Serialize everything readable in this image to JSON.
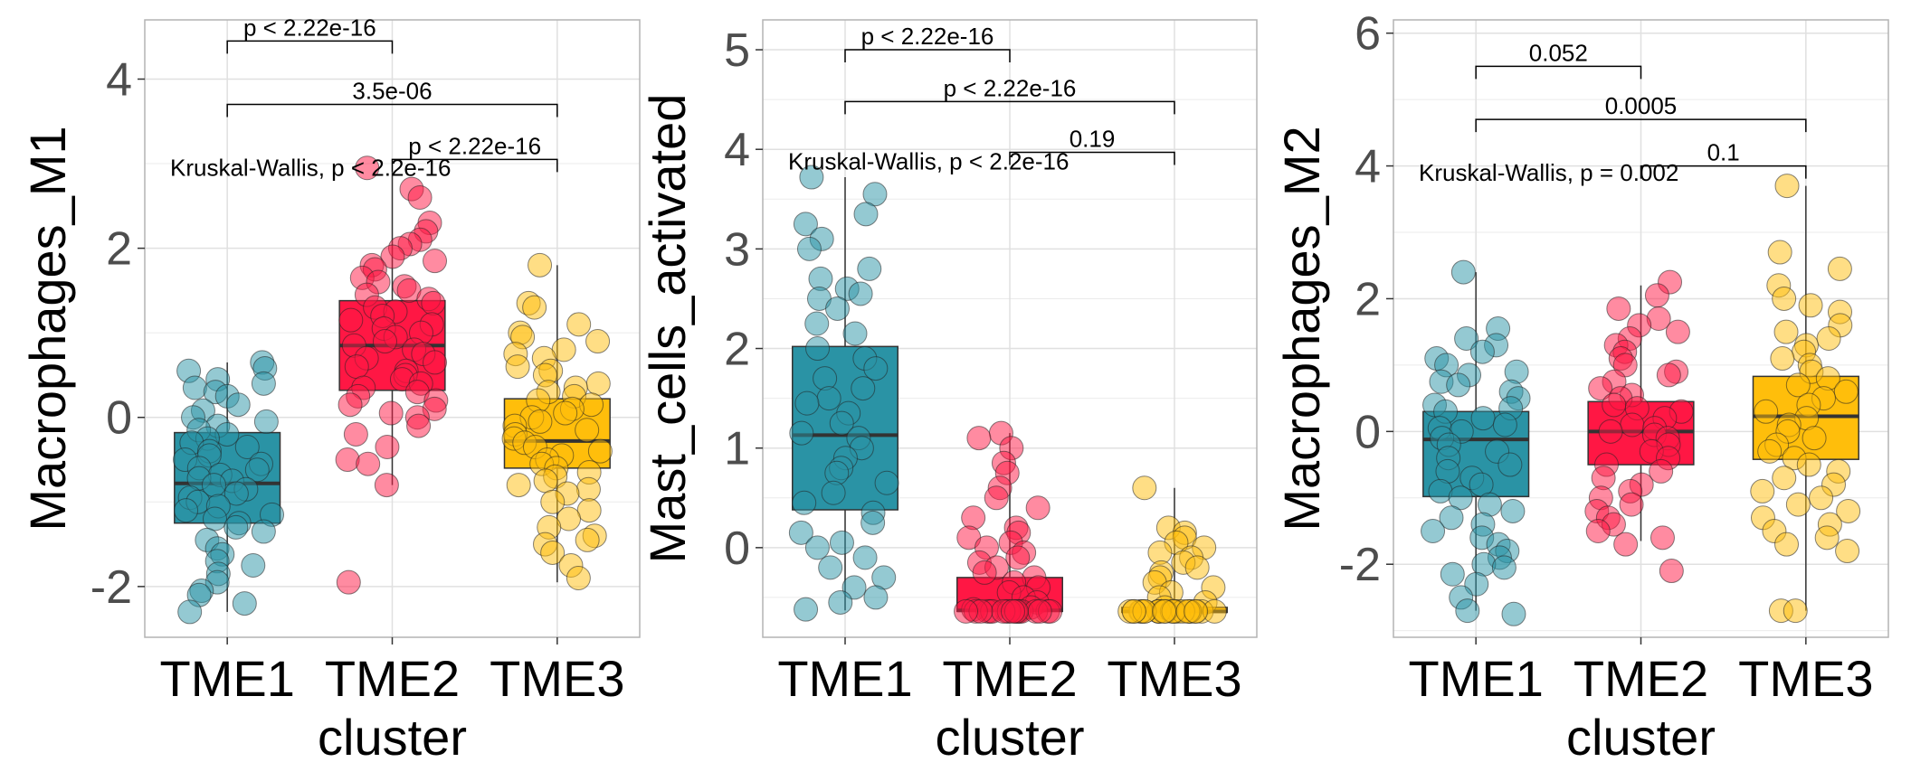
{
  "colors": {
    "TME1": "#2A93A5",
    "TME2": "#FF1744",
    "TME3": "#FFBE0B"
  },
  "chart_data": [
    {
      "type": "box",
      "title": "",
      "xlabel": "cluster",
      "ylabel": "Macrophages_M1",
      "categories": [
        "TME1",
        "TME2",
        "TME3"
      ],
      "ylim": [
        -2.6,
        4.7
      ],
      "yticks": [
        -2,
        0,
        2,
        4
      ],
      "grid": true,
      "boxes": [
        {
          "category": "TME1",
          "q1": -1.25,
          "median": -0.78,
          "q3": -0.18,
          "whisker_low": -2.3,
          "whisker_high": 0.65
        },
        {
          "category": "TME2",
          "q1": 0.32,
          "median": 0.85,
          "q3": 1.38,
          "whisker_low": -0.8,
          "whisker_high": 2.9
        },
        {
          "category": "TME3",
          "q1": -0.6,
          "median": -0.28,
          "q3": 0.22,
          "whisker_low": -1.95,
          "whisker_high": 1.8
        }
      ],
      "points": {
        "TME1": [
          0.65,
          0.58,
          0.55,
          0.45,
          0.4,
          0.35,
          0.3,
          0.25,
          0.15,
          0.08,
          0.0,
          -0.05,
          -0.1,
          -0.15,
          -0.2,
          -0.25,
          -0.3,
          -0.35,
          -0.4,
          -0.45,
          -0.5,
          -0.55,
          -0.6,
          -0.62,
          -0.68,
          -0.72,
          -0.75,
          -0.8,
          -0.85,
          -0.9,
          -0.95,
          -1.0,
          -1.05,
          -1.1,
          -1.15,
          -1.2,
          -1.25,
          -1.3,
          -1.35,
          -1.45,
          -1.55,
          -1.62,
          -1.7,
          -1.75,
          -1.85,
          -1.95,
          -2.05,
          -2.1,
          -2.2,
          -2.3
        ],
        "TME2": [
          2.95,
          2.7,
          2.6,
          2.3,
          2.2,
          2.1,
          2.05,
          2.0,
          1.9,
          1.85,
          1.8,
          1.75,
          1.65,
          1.6,
          1.55,
          1.5,
          1.45,
          1.4,
          1.35,
          1.3,
          1.25,
          1.2,
          1.15,
          1.1,
          1.05,
          1.0,
          0.95,
          0.9,
          0.85,
          0.8,
          0.75,
          0.7,
          0.65,
          0.6,
          0.55,
          0.5,
          0.45,
          0.4,
          0.35,
          0.3,
          0.25,
          0.2,
          0.15,
          0.1,
          0.05,
          0.0,
          -0.1,
          -0.2,
          -0.35,
          -0.5,
          -0.55,
          -0.8,
          -1.95
        ],
        "TME3": [
          1.8,
          1.35,
          1.3,
          1.1,
          1.0,
          0.95,
          0.9,
          0.8,
          0.75,
          0.7,
          0.6,
          0.55,
          0.5,
          0.4,
          0.35,
          0.3,
          0.25,
          0.2,
          0.15,
          0.1,
          0.05,
          0.0,
          -0.05,
          -0.1,
          -0.15,
          -0.2,
          -0.25,
          -0.3,
          -0.35,
          -0.4,
          -0.45,
          -0.5,
          -0.55,
          -0.6,
          -0.65,
          -0.7,
          -0.75,
          -0.8,
          -0.85,
          -0.9,
          -1.0,
          -1.1,
          -1.2,
          -1.3,
          -1.4,
          -1.45,
          -1.5,
          -1.6,
          -1.75,
          -1.9
        ]
      },
      "comparisons": [
        {
          "from": "TME1",
          "to": "TME2",
          "label": "p < 2.22e-16",
          "y": 4.45
        },
        {
          "from": "TME1",
          "to": "TME3",
          "label": "3.5e-06",
          "y": 3.7
        },
        {
          "from": "TME2",
          "to": "TME3",
          "label": "p < 2.22e-16",
          "y": 3.05
        }
      ],
      "kruskal": {
        "text": "Kruskal-Wallis, p < 2.2e-16",
        "y": 2.95
      }
    },
    {
      "type": "box",
      "title": "",
      "xlabel": "cluster",
      "ylabel": "Mast_cells_activated",
      "categories": [
        "TME1",
        "TME2",
        "TME3"
      ],
      "ylim": [
        -0.9,
        5.3
      ],
      "yticks": [
        0,
        1,
        2,
        3,
        4,
        5
      ],
      "grid": true,
      "boxes": [
        {
          "category": "TME1",
          "q1": 0.38,
          "median": 1.13,
          "q3": 2.02,
          "whisker_low": -0.63,
          "whisker_high": 3.72
        },
        {
          "category": "TME2",
          "q1": -0.64,
          "median": -0.63,
          "q3": -0.3,
          "whisker_low": -0.65,
          "whisker_high": 1.15
        },
        {
          "category": "TME3",
          "q1": -0.65,
          "median": -0.64,
          "q3": -0.6,
          "whisker_low": -0.65,
          "whisker_high": 0.6
        }
      ],
      "points": {
        "TME1": [
          3.72,
          3.55,
          3.35,
          3.25,
          3.1,
          3.0,
          2.8,
          2.7,
          2.6,
          2.55,
          2.5,
          2.4,
          2.25,
          2.15,
          2.0,
          1.9,
          1.8,
          1.7,
          1.6,
          1.5,
          1.45,
          1.35,
          1.25,
          1.15,
          1.1,
          1.0,
          0.9,
          0.8,
          0.75,
          0.65,
          0.55,
          0.45,
          0.35,
          0.25,
          0.15,
          0.05,
          0.0,
          -0.1,
          -0.2,
          -0.3,
          -0.4,
          -0.5,
          -0.55,
          -0.62
        ],
        "TME2": [
          1.15,
          1.1,
          1.0,
          0.85,
          0.75,
          0.6,
          0.5,
          0.4,
          0.3,
          0.2,
          0.15,
          0.1,
          0.05,
          0.0,
          -0.05,
          -0.1,
          -0.15,
          -0.2,
          -0.25,
          -0.3,
          -0.35,
          -0.4,
          -0.45,
          -0.5,
          -0.55,
          -0.6,
          -0.62,
          -0.64,
          -0.64,
          -0.64,
          -0.64,
          -0.64,
          -0.64,
          -0.64,
          -0.64,
          -0.64,
          -0.64,
          -0.64,
          -0.64,
          -0.64,
          -0.64,
          -0.64,
          -0.64,
          -0.64,
          -0.64,
          -0.64
        ],
        "TME3": [
          0.6,
          0.2,
          0.15,
          0.1,
          0.05,
          0.0,
          -0.05,
          -0.1,
          -0.15,
          -0.2,
          -0.25,
          -0.3,
          -0.35,
          -0.4,
          -0.45,
          -0.5,
          -0.55,
          -0.6,
          -0.64,
          -0.64,
          -0.64,
          -0.64,
          -0.64,
          -0.64,
          -0.64,
          -0.64,
          -0.64,
          -0.64,
          -0.64,
          -0.64,
          -0.64,
          -0.64,
          -0.64,
          -0.64,
          -0.64,
          -0.64,
          -0.64,
          -0.64,
          -0.64,
          -0.64,
          -0.64,
          -0.64
        ]
      },
      "comparisons": [
        {
          "from": "TME1",
          "to": "TME2",
          "label": "p < 2.22e-16",
          "y": 5.0
        },
        {
          "from": "TME1",
          "to": "TME3",
          "label": "p < 2.22e-16",
          "y": 4.48
        },
        {
          "from": "TME2",
          "to": "TME3",
          "label": "0.19",
          "y": 3.97
        }
      ],
      "kruskal": {
        "text": "Kruskal-Wallis, p < 2.2e-16",
        "y": 3.88
      }
    },
    {
      "type": "box",
      "title": "",
      "xlabel": "cluster",
      "ylabel": "Macrophages_M2",
      "categories": [
        "TME1",
        "TME2",
        "TME3"
      ],
      "ylim": [
        -3.1,
        6.2
      ],
      "yticks": [
        -2,
        0,
        2,
        4,
        6
      ],
      "grid": true,
      "boxes": [
        {
          "category": "TME1",
          "q1": -0.98,
          "median": -0.12,
          "q3": 0.3,
          "whisker_low": -2.7,
          "whisker_high": 2.4
        },
        {
          "category": "TME2",
          "q1": -0.5,
          "median": 0.0,
          "q3": 0.45,
          "whisker_low": -1.65,
          "whisker_high": 2.2
        },
        {
          "category": "TME3",
          "q1": -0.42,
          "median": 0.23,
          "q3": 0.83,
          "whisker_low": -2.7,
          "whisker_high": 3.7
        }
      ],
      "points": {
        "TME1": [
          2.4,
          1.55,
          1.4,
          1.3,
          1.2,
          1.1,
          1.0,
          0.9,
          0.85,
          0.75,
          0.7,
          0.6,
          0.5,
          0.4,
          0.35,
          0.3,
          0.2,
          0.1,
          0.05,
          0.0,
          -0.1,
          -0.2,
          -0.3,
          -0.4,
          -0.5,
          -0.6,
          -0.7,
          -0.8,
          -0.9,
          -1.0,
          -1.1,
          -1.2,
          -1.3,
          -1.4,
          -1.5,
          -1.6,
          -1.7,
          -1.8,
          -1.9,
          -2.0,
          -2.05,
          -2.15,
          -2.3,
          -2.5,
          -2.7,
          -2.75
        ],
        "TME2": [
          2.25,
          2.05,
          1.85,
          1.7,
          1.6,
          1.5,
          1.4,
          1.3,
          1.2,
          1.1,
          1.0,
          0.9,
          0.85,
          0.75,
          0.65,
          0.55,
          0.5,
          0.4,
          0.35,
          0.3,
          0.2,
          0.1,
          0.05,
          0.0,
          -0.05,
          -0.1,
          -0.2,
          -0.3,
          -0.4,
          -0.5,
          -0.6,
          -0.7,
          -0.8,
          -0.9,
          -1.0,
          -1.1,
          -1.2,
          -1.3,
          -1.4,
          -1.5,
          -1.6,
          -1.7,
          -2.1
        ],
        "TME3": [
          3.7,
          2.7,
          2.45,
          2.2,
          2.0,
          1.9,
          1.8,
          1.6,
          1.5,
          1.4,
          1.3,
          1.2,
          1.1,
          1.0,
          0.9,
          0.8,
          0.7,
          0.6,
          0.5,
          0.4,
          0.3,
          0.2,
          0.1,
          0.0,
          -0.1,
          -0.2,
          -0.3,
          -0.4,
          -0.5,
          -0.6,
          -0.7,
          -0.8,
          -0.9,
          -1.0,
          -1.1,
          -1.2,
          -1.3,
          -1.4,
          -1.5,
          -1.6,
          -1.7,
          -1.8,
          -2.7,
          -2.7
        ]
      },
      "comparisons": [
        {
          "from": "TME1",
          "to": "TME2",
          "label": "0.052",
          "y": 5.5
        },
        {
          "from": "TME1",
          "to": "TME3",
          "label": "0.0005",
          "y": 4.7
        },
        {
          "from": "TME2",
          "to": "TME3",
          "label": "0.1",
          "y": 4.0
        }
      ],
      "kruskal": {
        "text": "Kruskal-Wallis, p = 0.002",
        "y": 3.9
      }
    }
  ]
}
